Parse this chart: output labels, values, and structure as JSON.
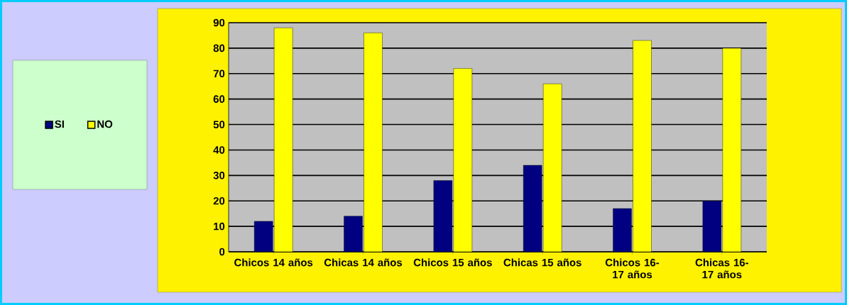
{
  "chart_data": {
    "type": "bar",
    "categories": [
      "Chicos 14 años",
      "Chicas 14 años",
      "Chicos 15 años",
      "Chicas 15 años",
      "Chicos 16-17 años",
      "Chicas 16-17 años"
    ],
    "series": [
      {
        "name": "SI",
        "color": "#000080",
        "values": [
          12,
          14,
          28,
          34,
          17,
          20
        ]
      },
      {
        "name": "NO",
        "color": "#ffff00",
        "values": [
          88,
          86,
          72,
          66,
          83,
          80
        ]
      }
    ],
    "ylim": [
      0,
      90
    ],
    "yticks": [
      0,
      10,
      20,
      30,
      40,
      50,
      60,
      70,
      80,
      90
    ],
    "grid": "y",
    "legend": "left"
  }
}
